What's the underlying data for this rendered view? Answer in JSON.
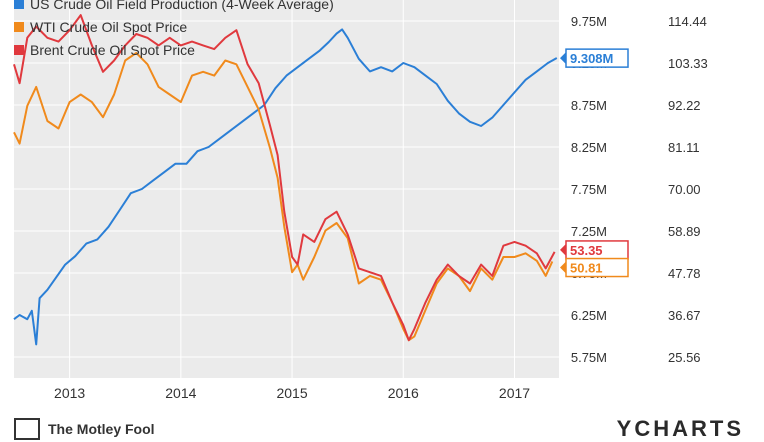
{
  "legend": {
    "items": [
      {
        "label": "US Crude Oil Field Production (4-Week Average)",
        "color": "#2b7fd6"
      },
      {
        "label": "WTI Crude Oil Spot Price",
        "color": "#f08a1c"
      },
      {
        "label": "Brent Crude Oil Spot Price",
        "color": "#e0393e"
      }
    ]
  },
  "footer": {
    "brand": "The Motley Fool",
    "source": "YCHARTS"
  },
  "chart_data": {
    "type": "line",
    "x_ticks": [
      "2013",
      "2014",
      "2015",
      "2016",
      "2017"
    ],
    "left_axis_ticks": [
      "9.75M",
      "9.25M",
      "8.75M",
      "8.25M",
      "7.75M",
      "7.25M",
      "6.75M",
      "6.25M",
      "5.75M"
    ],
    "right_axis_ticks": [
      "114.44",
      "103.33",
      "92.22",
      "81.11",
      "70.00",
      "58.89",
      "47.78",
      "36.67",
      "25.56"
    ],
    "left_ylim": [
      5.5,
      10.0
    ],
    "right_ylim": [
      20.0,
      120.0
    ],
    "end_labels": {
      "production": "9.308M",
      "brent": "53.35",
      "wti": "50.81"
    },
    "series": [
      {
        "name": "US Crude Oil Field Production (4-Week Average)",
        "axis": "left",
        "color": "#2b7fd6",
        "points": [
          [
            2012.5,
            6.2
          ],
          [
            2012.55,
            6.25
          ],
          [
            2012.62,
            6.2
          ],
          [
            2012.66,
            6.3
          ],
          [
            2012.7,
            5.9
          ],
          [
            2012.73,
            6.45
          ],
          [
            2012.8,
            6.55
          ],
          [
            2012.88,
            6.7
          ],
          [
            2012.96,
            6.85
          ],
          [
            2013.05,
            6.95
          ],
          [
            2013.15,
            7.1
          ],
          [
            2013.25,
            7.15
          ],
          [
            2013.35,
            7.3
          ],
          [
            2013.45,
            7.5
          ],
          [
            2013.55,
            7.7
          ],
          [
            2013.65,
            7.75
          ],
          [
            2013.75,
            7.85
          ],
          [
            2013.85,
            7.95
          ],
          [
            2013.95,
            8.05
          ],
          [
            2014.05,
            8.05
          ],
          [
            2014.15,
            8.2
          ],
          [
            2014.25,
            8.25
          ],
          [
            2014.35,
            8.35
          ],
          [
            2014.45,
            8.45
          ],
          [
            2014.55,
            8.55
          ],
          [
            2014.65,
            8.65
          ],
          [
            2014.75,
            8.75
          ],
          [
            2014.85,
            8.95
          ],
          [
            2014.95,
            9.1
          ],
          [
            2015.05,
            9.2
          ],
          [
            2015.15,
            9.3
          ],
          [
            2015.25,
            9.4
          ],
          [
            2015.33,
            9.5
          ],
          [
            2015.4,
            9.6
          ],
          [
            2015.45,
            9.65
          ],
          [
            2015.5,
            9.55
          ],
          [
            2015.6,
            9.3
          ],
          [
            2015.7,
            9.15
          ],
          [
            2015.8,
            9.2
          ],
          [
            2015.9,
            9.15
          ],
          [
            2016.0,
            9.25
          ],
          [
            2016.1,
            9.2
          ],
          [
            2016.2,
            9.1
          ],
          [
            2016.3,
            9.0
          ],
          [
            2016.4,
            8.8
          ],
          [
            2016.5,
            8.65
          ],
          [
            2016.6,
            8.55
          ],
          [
            2016.7,
            8.5
          ],
          [
            2016.8,
            8.6
          ],
          [
            2016.9,
            8.75
          ],
          [
            2017.0,
            8.9
          ],
          [
            2017.1,
            9.05
          ],
          [
            2017.2,
            9.15
          ],
          [
            2017.3,
            9.25
          ],
          [
            2017.38,
            9.31
          ]
        ]
      },
      {
        "name": "WTI Crude Oil Spot Price",
        "axis": "right",
        "color": "#f08a1c",
        "points": [
          [
            2012.5,
            85
          ],
          [
            2012.55,
            82
          ],
          [
            2012.62,
            92
          ],
          [
            2012.7,
            97
          ],
          [
            2012.8,
            88
          ],
          [
            2012.9,
            86
          ],
          [
            2013.0,
            93
          ],
          [
            2013.1,
            95
          ],
          [
            2013.2,
            93
          ],
          [
            2013.3,
            89
          ],
          [
            2013.4,
            95
          ],
          [
            2013.5,
            104
          ],
          [
            2013.6,
            106
          ],
          [
            2013.7,
            103
          ],
          [
            2013.8,
            97
          ],
          [
            2013.9,
            95
          ],
          [
            2014.0,
            93
          ],
          [
            2014.1,
            100
          ],
          [
            2014.2,
            101
          ],
          [
            2014.3,
            100
          ],
          [
            2014.4,
            104
          ],
          [
            2014.5,
            103
          ],
          [
            2014.6,
            97
          ],
          [
            2014.7,
            91
          ],
          [
            2014.8,
            81
          ],
          [
            2014.87,
            73
          ],
          [
            2014.93,
            60
          ],
          [
            2015.0,
            48
          ],
          [
            2015.05,
            50
          ],
          [
            2015.1,
            46
          ],
          [
            2015.2,
            52
          ],
          [
            2015.3,
            59
          ],
          [
            2015.4,
            61
          ],
          [
            2015.5,
            57
          ],
          [
            2015.6,
            45
          ],
          [
            2015.7,
            47
          ],
          [
            2015.8,
            46
          ],
          [
            2015.9,
            40
          ],
          [
            2016.0,
            33
          ],
          [
            2016.05,
            30
          ],
          [
            2016.1,
            31
          ],
          [
            2016.2,
            38
          ],
          [
            2016.3,
            45
          ],
          [
            2016.4,
            49
          ],
          [
            2016.5,
            47
          ],
          [
            2016.6,
            43
          ],
          [
            2016.7,
            49
          ],
          [
            2016.8,
            46
          ],
          [
            2016.9,
            52
          ],
          [
            2017.0,
            52
          ],
          [
            2017.1,
            53
          ],
          [
            2017.2,
            51
          ],
          [
            2017.28,
            47
          ],
          [
            2017.34,
            50.81
          ]
        ]
      },
      {
        "name": "Brent Crude Oil Spot Price",
        "axis": "right",
        "color": "#e0393e",
        "points": [
          [
            2012.5,
            103
          ],
          [
            2012.55,
            98
          ],
          [
            2012.62,
            110
          ],
          [
            2012.7,
            113
          ],
          [
            2012.8,
            110
          ],
          [
            2012.9,
            109
          ],
          [
            2013.0,
            112
          ],
          [
            2013.1,
            116
          ],
          [
            2013.2,
            108
          ],
          [
            2013.3,
            101
          ],
          [
            2013.4,
            104
          ],
          [
            2013.5,
            108
          ],
          [
            2013.6,
            111
          ],
          [
            2013.7,
            110
          ],
          [
            2013.8,
            108
          ],
          [
            2013.9,
            110
          ],
          [
            2014.0,
            108
          ],
          [
            2014.1,
            109
          ],
          [
            2014.2,
            108
          ],
          [
            2014.3,
            107
          ],
          [
            2014.4,
            110
          ],
          [
            2014.5,
            112
          ],
          [
            2014.6,
            103
          ],
          [
            2014.7,
            98
          ],
          [
            2014.8,
            87
          ],
          [
            2014.87,
            79
          ],
          [
            2014.93,
            64
          ],
          [
            2015.0,
            52
          ],
          [
            2015.05,
            50
          ],
          [
            2015.1,
            58
          ],
          [
            2015.2,
            56
          ],
          [
            2015.3,
            62
          ],
          [
            2015.4,
            64
          ],
          [
            2015.5,
            58
          ],
          [
            2015.6,
            49
          ],
          [
            2015.7,
            48
          ],
          [
            2015.8,
            47
          ],
          [
            2015.9,
            40
          ],
          [
            2016.0,
            34
          ],
          [
            2016.05,
            30
          ],
          [
            2016.1,
            33
          ],
          [
            2016.2,
            40
          ],
          [
            2016.3,
            46
          ],
          [
            2016.4,
            50
          ],
          [
            2016.5,
            47
          ],
          [
            2016.6,
            45
          ],
          [
            2016.7,
            50
          ],
          [
            2016.8,
            47
          ],
          [
            2016.9,
            55
          ],
          [
            2017.0,
            56
          ],
          [
            2017.1,
            55
          ],
          [
            2017.2,
            53
          ],
          [
            2017.28,
            49
          ],
          [
            2017.36,
            53.35
          ]
        ]
      }
    ]
  }
}
